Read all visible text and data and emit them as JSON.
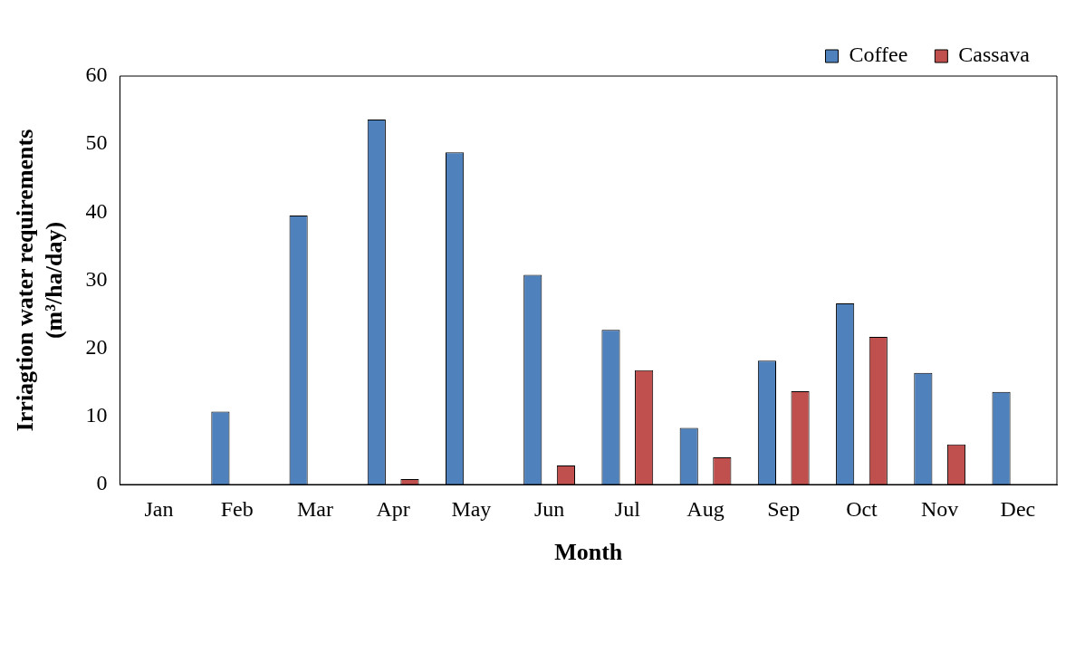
{
  "chart_data": {
    "type": "bar",
    "xlabel": "Month",
    "ylabel": "Irriagtion water requirements\n(m³/ha/day)",
    "categories": [
      "Jan",
      "Feb",
      "Mar",
      "Apr",
      "May",
      "Jun",
      "Jul",
      "Aug",
      "Sep",
      "Oct",
      "Nov",
      "Dec"
    ],
    "series": [
      {
        "name": "Coffee",
        "color": "#4f81bd",
        "values": [
          0,
          10.7,
          39.5,
          53.6,
          48.8,
          30.8,
          22.7,
          8.3,
          18.2,
          26.6,
          16.4,
          13.6
        ]
      },
      {
        "name": "Cassava",
        "color": "#c0504d",
        "values": [
          0,
          0,
          0,
          0.8,
          0,
          2.8,
          16.8,
          4.0,
          13.7,
          21.7,
          5.9,
          0
        ]
      }
    ],
    "ylim": [
      0,
      60
    ],
    "yticks": [
      0,
      10,
      20,
      30,
      40,
      50,
      60
    ],
    "grid": false,
    "legend": "top right"
  }
}
